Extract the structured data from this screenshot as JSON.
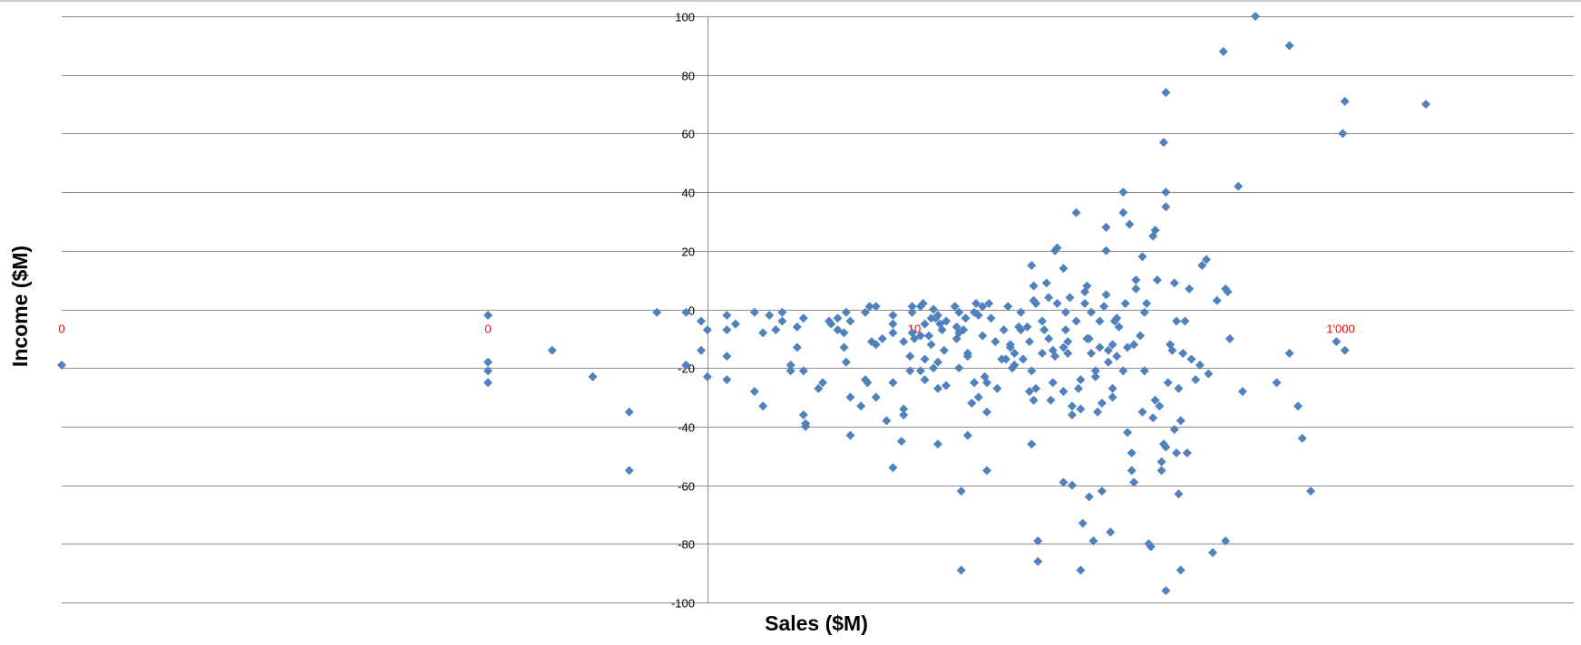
{
  "chart_data": {
    "type": "scatter",
    "title": "",
    "xlabel": "Sales ($M)",
    "ylabel": "Income ($M)",
    "x_scale": "log",
    "xlim": [
      0.001,
      10000
    ],
    "ylim": [
      -100,
      100
    ],
    "grid": true,
    "legend": "none",
    "marker_color": "#4F81BD",
    "x_tick_color": "#FF0000",
    "x_ticks": [
      {
        "value": 0.001,
        "label": "0"
      },
      {
        "value": 0.1,
        "label": "0"
      },
      {
        "value": 10,
        "label": "10"
      },
      {
        "value": 1000,
        "label": "1'000"
      }
    ],
    "y_ticks": [
      {
        "value": 100,
        "label": "100"
      },
      {
        "value": 80,
        "label": "80"
      },
      {
        "value": 60,
        "label": "60"
      },
      {
        "value": 40,
        "label": "40"
      },
      {
        "value": 20,
        "label": "20"
      },
      {
        "value": 0,
        "label": "0"
      },
      {
        "value": -20,
        "label": "-20"
      },
      {
        "value": -40,
        "label": "-40"
      },
      {
        "value": -60,
        "label": "-60"
      },
      {
        "value": -80,
        "label": "-80"
      },
      {
        "value": -100,
        "label": "-100"
      }
    ],
    "series": [
      {
        "points": [
          [
            0.001,
            -19
          ],
          [
            0.1,
            -2
          ],
          [
            0.1,
            -18
          ],
          [
            0.1,
            -21
          ],
          [
            0.1,
            -25
          ],
          [
            0.2,
            -14
          ],
          [
            0.31,
            -23
          ],
          [
            0.46,
            -35
          ],
          [
            0.46,
            -55
          ],
          [
            0.62,
            -1
          ],
          [
            0.85,
            -1
          ],
          [
            0.85,
            -19
          ],
          [
            1.0,
            -4
          ],
          [
            1.0,
            -14
          ],
          [
            1.07,
            -7
          ],
          [
            1.07,
            -23
          ],
          [
            1.32,
            -2
          ],
          [
            1.32,
            -7
          ],
          [
            1.32,
            -16
          ],
          [
            1.32,
            -24
          ],
          [
            1.45,
            -5
          ],
          [
            1.78,
            -1
          ],
          [
            1.78,
            -28
          ],
          [
            1.95,
            -8
          ],
          [
            1.95,
            -33
          ],
          [
            2.09,
            -2
          ],
          [
            2.24,
            -7
          ],
          [
            2.4,
            -1
          ],
          [
            2.4,
            -4
          ],
          [
            2.63,
            -19
          ],
          [
            2.63,
            -21
          ],
          [
            2.82,
            -6
          ],
          [
            2.82,
            -13
          ],
          [
            3.02,
            -3
          ],
          [
            3.02,
            -21
          ],
          [
            3.02,
            -36
          ],
          [
            3.09,
            -39
          ],
          [
            3.09,
            -40
          ],
          [
            3.55,
            -27
          ],
          [
            3.72,
            -25
          ],
          [
            3.98,
            -4
          ],
          [
            4.07,
            -5
          ],
          [
            4.37,
            -3
          ],
          [
            4.37,
            -7
          ],
          [
            4.68,
            -8
          ],
          [
            4.68,
            -13
          ],
          [
            4.79,
            -1
          ],
          [
            4.79,
            -18
          ],
          [
            5.01,
            -4
          ],
          [
            5.01,
            -30
          ],
          [
            5.01,
            -43
          ],
          [
            5.62,
            -33
          ],
          [
            5.89,
            -1
          ],
          [
            5.89,
            -24
          ],
          [
            6.03,
            -25
          ],
          [
            6.17,
            1
          ],
          [
            6.31,
            -11
          ],
          [
            6.61,
            1
          ],
          [
            6.61,
            -12
          ],
          [
            6.61,
            -30
          ],
          [
            7.08,
            -10
          ],
          [
            7.41,
            -38
          ],
          [
            7.94,
            -2
          ],
          [
            7.94,
            -5
          ],
          [
            7.94,
            -8
          ],
          [
            7.94,
            -25
          ],
          [
            7.94,
            -54
          ],
          [
            8.71,
            -45
          ],
          [
            8.91,
            -11
          ],
          [
            8.91,
            -34
          ],
          [
            8.91,
            -36
          ],
          [
            9.55,
            -16
          ],
          [
            9.55,
            -21
          ],
          [
            9.77,
            -1
          ],
          [
            9.77,
            -8
          ],
          [
            9.77,
            1
          ],
          [
            10.0,
            -10
          ],
          [
            10.7,
            -9
          ],
          [
            10.7,
            -21
          ],
          [
            10.7,
            1
          ],
          [
            11.0,
            2
          ],
          [
            11.2,
            -5
          ],
          [
            11.2,
            -24
          ],
          [
            11.2,
            -17
          ],
          [
            11.7,
            -9
          ],
          [
            12.0,
            -3
          ],
          [
            12.0,
            -12
          ],
          [
            12.3,
            0
          ],
          [
            12.3,
            -20
          ],
          [
            12.6,
            -3
          ],
          [
            12.9,
            -2
          ],
          [
            12.9,
            -27
          ],
          [
            12.9,
            -46
          ],
          [
            12.9,
            -18
          ],
          [
            13.2,
            -5
          ],
          [
            13.5,
            -7
          ],
          [
            13.8,
            -14
          ],
          [
            14.1,
            -4
          ],
          [
            14.1,
            -26
          ],
          [
            15.5,
            1
          ],
          [
            15.8,
            -6
          ],
          [
            15.8,
            -10
          ],
          [
            16.2,
            -1
          ],
          [
            16.2,
            -8
          ],
          [
            16.2,
            -20
          ],
          [
            16.6,
            -62
          ],
          [
            16.6,
            -89
          ],
          [
            17.0,
            -7
          ],
          [
            17.4,
            -3
          ],
          [
            17.8,
            -15
          ],
          [
            17.8,
            -16
          ],
          [
            17.8,
            -43
          ],
          [
            18.6,
            -32
          ],
          [
            19.1,
            -1
          ],
          [
            19.1,
            -25
          ],
          [
            19.5,
            2
          ],
          [
            20.0,
            -2
          ],
          [
            20.0,
            -30
          ],
          [
            20.9,
            -9
          ],
          [
            20.9,
            1
          ],
          [
            21.4,
            -23
          ],
          [
            21.9,
            -25
          ],
          [
            21.9,
            -35
          ],
          [
            21.9,
            -55
          ],
          [
            22.4,
            2
          ],
          [
            22.9,
            -3
          ],
          [
            24.0,
            -11
          ],
          [
            24.5,
            -27
          ],
          [
            25.7,
            -17
          ],
          [
            26.3,
            -7
          ],
          [
            26.9,
            -17
          ],
          [
            27.5,
            1
          ],
          [
            28.2,
            -12
          ],
          [
            28.2,
            -13
          ],
          [
            28.8,
            -20
          ],
          [
            29.5,
            -19
          ],
          [
            29.5,
            -15
          ],
          [
            30.9,
            -6
          ],
          [
            31.6,
            -1
          ],
          [
            31.6,
            -7
          ],
          [
            32.4,
            -17
          ],
          [
            33.9,
            -6
          ],
          [
            34.7,
            -11
          ],
          [
            34.7,
            -28
          ],
          [
            35.5,
            15
          ],
          [
            35.5,
            -21
          ],
          [
            35.5,
            -46
          ],
          [
            36.3,
            -31
          ],
          [
            36.3,
            3
          ],
          [
            36.3,
            8
          ],
          [
            37.2,
            2
          ],
          [
            37.2,
            -27
          ],
          [
            38.0,
            -86
          ],
          [
            38.0,
            -79
          ],
          [
            39.8,
            -4
          ],
          [
            39.8,
            -15
          ],
          [
            40.7,
            -7
          ],
          [
            41.7,
            9
          ],
          [
            42.7,
            -10
          ],
          [
            42.7,
            4
          ],
          [
            43.7,
            -31
          ],
          [
            44.7,
            -14
          ],
          [
            44.7,
            -25
          ],
          [
            45.7,
            20
          ],
          [
            45.7,
            -16
          ],
          [
            46.8,
            21
          ],
          [
            46.8,
            2
          ],
          [
            50.1,
            14
          ],
          [
            50.1,
            -13
          ],
          [
            50.1,
            -28
          ],
          [
            50.1,
            -59
          ],
          [
            51.3,
            -1
          ],
          [
            51.3,
            -7
          ],
          [
            52.5,
            -11
          ],
          [
            52.5,
            -15
          ],
          [
            53.7,
            4
          ],
          [
            55.0,
            -60
          ],
          [
            55.0,
            -33
          ],
          [
            55.0,
            -36
          ],
          [
            57.5,
            33
          ],
          [
            57.5,
            -4
          ],
          [
            58.9,
            -27
          ],
          [
            60.3,
            -24
          ],
          [
            60.3,
            -34
          ],
          [
            60.3,
            -89
          ],
          [
            61.7,
            -73
          ],
          [
            63.1,
            2
          ],
          [
            63.1,
            6
          ],
          [
            64.6,
            -10
          ],
          [
            64.6,
            8
          ],
          [
            66.1,
            -64
          ],
          [
            66.1,
            -10
          ],
          [
            67.6,
            -1
          ],
          [
            67.6,
            -15
          ],
          [
            69.2,
            -79
          ],
          [
            70.8,
            -23
          ],
          [
            70.8,
            -21
          ],
          [
            72.4,
            -35
          ],
          [
            74.1,
            -13
          ],
          [
            74.1,
            -4
          ],
          [
            75.9,
            -32
          ],
          [
            75.9,
            -62
          ],
          [
            77.6,
            1
          ],
          [
            79.4,
            28
          ],
          [
            79.4,
            20
          ],
          [
            79.4,
            5
          ],
          [
            81.3,
            -14
          ],
          [
            81.3,
            -18
          ],
          [
            83.2,
            -76
          ],
          [
            85.1,
            -30
          ],
          [
            85.1,
            -12
          ],
          [
            85.1,
            -27
          ],
          [
            87.1,
            -4
          ],
          [
            89.1,
            -3
          ],
          [
            89.1,
            -16
          ],
          [
            91.2,
            -6
          ],
          [
            95.5,
            -21
          ],
          [
            95.5,
            33
          ],
          [
            95.5,
            40
          ],
          [
            97.7,
            2
          ],
          [
            100.0,
            -13
          ],
          [
            100.0,
            -42
          ],
          [
            102.3,
            29
          ],
          [
            104.7,
            -55
          ],
          [
            104.7,
            -49
          ],
          [
            107.2,
            -59
          ],
          [
            107.2,
            -12
          ],
          [
            109.6,
            7
          ],
          [
            109.6,
            10
          ],
          [
            114.8,
            -9
          ],
          [
            117.5,
            18
          ],
          [
            117.5,
            -35
          ],
          [
            120.2,
            -21
          ],
          [
            120.2,
            -1
          ],
          [
            123.0,
            2
          ],
          [
            125.9,
            -80
          ],
          [
            128.8,
            -81
          ],
          [
            131.8,
            -37
          ],
          [
            131.8,
            25
          ],
          [
            134.9,
            -31
          ],
          [
            134.9,
            27
          ],
          [
            138.0,
            10
          ],
          [
            141.3,
            -33
          ],
          [
            144.5,
            -52
          ],
          [
            144.5,
            -55
          ],
          [
            147.9,
            57
          ],
          [
            147.9,
            -46
          ],
          [
            151.4,
            74
          ],
          [
            151.4,
            35
          ],
          [
            151.4,
            -96
          ],
          [
            151.4,
            -47
          ],
          [
            151.4,
            40
          ],
          [
            154.9,
            -25
          ],
          [
            158.5,
            -12
          ],
          [
            162.2,
            -14
          ],
          [
            166.0,
            -41
          ],
          [
            166.0,
            9
          ],
          [
            169.8,
            -4
          ],
          [
            169.8,
            -49
          ],
          [
            173.8,
            -63
          ],
          [
            173.8,
            -27
          ],
          [
            177.8,
            -89
          ],
          [
            177.8,
            -38
          ],
          [
            182.0,
            -15
          ],
          [
            186.2,
            -4
          ],
          [
            190.5,
            -49
          ],
          [
            195.0,
            7
          ],
          [
            199.5,
            -17
          ],
          [
            208.9,
            -24
          ],
          [
            218.8,
            -19
          ],
          [
            223.9,
            15
          ],
          [
            234.4,
            17
          ],
          [
            240.0,
            -22
          ],
          [
            251.2,
            -83
          ],
          [
            263.0,
            3
          ],
          [
            281.8,
            88
          ],
          [
            288.4,
            7
          ],
          [
            288.4,
            -79
          ],
          [
            295.1,
            6
          ],
          [
            302.0,
            -10
          ],
          [
            331.1,
            42
          ],
          [
            346.7,
            -28
          ],
          [
            398.1,
            100
          ],
          [
            501.2,
            -25
          ],
          [
            575.4,
            90
          ],
          [
            575.4,
            -15
          ],
          [
            630.9,
            -33
          ],
          [
            660.7,
            -44
          ],
          [
            724.4,
            -62
          ],
          [
            954.9,
            -11
          ],
          [
            1023.3,
            60
          ],
          [
            1047.1,
            71
          ],
          [
            1047.1,
            -14
          ],
          [
            2511.9,
            70
          ]
        ]
      }
    ]
  }
}
